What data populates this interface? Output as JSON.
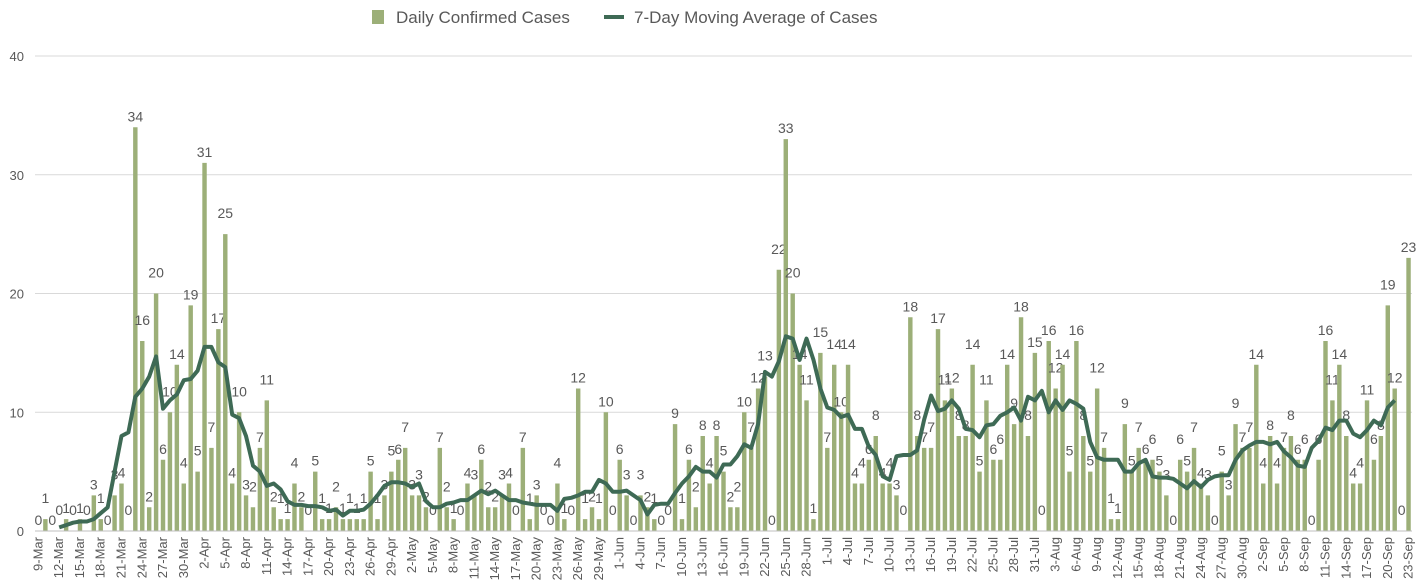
{
  "chart_data": {
    "type": "bar",
    "categories": [
      "9-Mar",
      null,
      null,
      "12-Mar",
      null,
      null,
      "15-Mar",
      null,
      null,
      "18-Mar",
      null,
      null,
      "21-Mar",
      null,
      null,
      "24-Mar",
      null,
      null,
      "27-Mar",
      null,
      null,
      "30-Mar",
      null,
      null,
      "2-Apr",
      null,
      null,
      "5-Apr",
      null,
      null,
      "8-Apr",
      null,
      null,
      "11-Apr",
      null,
      null,
      "14-Apr",
      null,
      null,
      "17-Apr",
      null,
      null,
      "20-Apr",
      null,
      null,
      "23-Apr",
      null,
      null,
      "26-Apr",
      null,
      null,
      "29-Apr",
      null,
      null,
      "2-May",
      null,
      null,
      "5-May",
      null,
      null,
      "8-May",
      null,
      null,
      "11-May",
      null,
      null,
      "14-May",
      null,
      null,
      "17-May",
      null,
      null,
      "20-May",
      null,
      null,
      "23-May",
      null,
      null,
      "26-May",
      null,
      null,
      "29-May",
      null,
      null,
      "1-Jun",
      null,
      null,
      "4-Jun",
      null,
      null,
      "7-Jun",
      null,
      null,
      "10-Jun",
      null,
      null,
      "13-Jun",
      null,
      null,
      "16-Jun",
      null,
      null,
      "19-Jun",
      null,
      null,
      "22-Jun",
      null,
      null,
      "25-Jun",
      null,
      null,
      "28-Jun",
      null,
      null,
      "1-Jul",
      null,
      null,
      "4-Jul",
      null,
      null,
      "7-Jul",
      null,
      null,
      "10-Jul",
      null,
      null,
      "13-Jul",
      null,
      null,
      "16-Jul",
      null,
      null,
      "19-Jul",
      null,
      null,
      "22-Jul",
      null,
      null,
      "25-Jul",
      null,
      null,
      "28-Jul",
      null,
      null,
      "31-Jul",
      null,
      null,
      "3-Aug",
      null,
      null,
      "6-Aug",
      null,
      null,
      "9-Aug",
      null,
      null,
      "12-Aug",
      null,
      null,
      "15-Aug",
      null,
      null,
      "18-Aug",
      null,
      null,
      "21-Aug",
      null,
      null,
      "24-Aug",
      null,
      null,
      "27-Aug",
      null,
      null,
      "30-Aug",
      null,
      null,
      "2-Sep",
      null,
      null,
      "5-Sep",
      null,
      null,
      "8-Sep",
      null,
      null,
      "11-Sep",
      null,
      null,
      "14-Sep",
      null,
      null,
      "17-Sep",
      null,
      null,
      "20-Sep",
      null,
      null,
      "23-Sep"
    ],
    "series": [
      {
        "name": "Daily Confirmed Cases",
        "type": "bar",
        "color": "#9caf78",
        "values": [
          0,
          1,
          0,
          0,
          1,
          0,
          1,
          0,
          3,
          1,
          0,
          3,
          4,
          0,
          34,
          16,
          2,
          20,
          6,
          10,
          14,
          4,
          19,
          5,
          31,
          7,
          17,
          25,
          4,
          10,
          3,
          2,
          7,
          11,
          2,
          1,
          1,
          4,
          2,
          0,
          5,
          1,
          1,
          2,
          1,
          1,
          1,
          1,
          5,
          1,
          3,
          5,
          6,
          7,
          3,
          3,
          2,
          0,
          7,
          2,
          1,
          0,
          4,
          3,
          6,
          2,
          2,
          3,
          4,
          0,
          7,
          1,
          3,
          0,
          0,
          4,
          1,
          0,
          12,
          1,
          2,
          1,
          10,
          0,
          6,
          3,
          0,
          3,
          2,
          1,
          0,
          0,
          9,
          1,
          6,
          2,
          8,
          4,
          8,
          5,
          2,
          2,
          10,
          7,
          12,
          13,
          0,
          22,
          33,
          20,
          14,
          11,
          1,
          15,
          7,
          14,
          10,
          14,
          4,
          4,
          6,
          8,
          4,
          4,
          3,
          0,
          18,
          8,
          7,
          7,
          17,
          11,
          12,
          8,
          8,
          14,
          5,
          11,
          6,
          6,
          14,
          9,
          18,
          8,
          15,
          0,
          16,
          12,
          14,
          5,
          16,
          8,
          5,
          12,
          7,
          1,
          1,
          9,
          5,
          7,
          6,
          6,
          5,
          3,
          0,
          6,
          5,
          7,
          4,
          3,
          0,
          5,
          3,
          9,
          7,
          7,
          14,
          4,
          8,
          4,
          7,
          8,
          6,
          6,
          0,
          6,
          16,
          11,
          14,
          8,
          4,
          4,
          11,
          6,
          8,
          19,
          12,
          0,
          23
        ]
      },
      {
        "name": "7-Day Moving Average of Cases",
        "type": "line",
        "color": "#3e6a55",
        "values": [
          null,
          null,
          null,
          0.3,
          0.5,
          0.7,
          0.8,
          0.8,
          1,
          1.5,
          2,
          5,
          8,
          8.3,
          11.3,
          12,
          13,
          14.7,
          10.3,
          11,
          11.5,
          12.7,
          12.8,
          13.5,
          15.5,
          15.5,
          14.2,
          13.8,
          9.8,
          9.5,
          8,
          5.5,
          5,
          3.8,
          4,
          3.5,
          2.5,
          2.2,
          2.2,
          2.1,
          2.1,
          2,
          1.7,
          1.8,
          1.3,
          1.7,
          1.7,
          1.8,
          2.3,
          3,
          3.8,
          4.1,
          4.1,
          4,
          3.7,
          4,
          2.5,
          2,
          2,
          2.3,
          2.4,
          2.6,
          2.6,
          3,
          3.4,
          3.1,
          3.4,
          3,
          2.6,
          2.6,
          2.4,
          2.3,
          2.2,
          2.2,
          2.2,
          1.7,
          2.7,
          2.8,
          3,
          3.3,
          3.3,
          4.3,
          4,
          3.3,
          3.3,
          3.4,
          3,
          2.6,
          1.4,
          2.2,
          2.3,
          2.3,
          3.2,
          4,
          4.6,
          5.4,
          5,
          5,
          4.5,
          5.6,
          5.6,
          6.3,
          7.3,
          7,
          9,
          13.4,
          13,
          14.3,
          16.4,
          16.2,
          14.4,
          16.2,
          14.4,
          12,
          10.4,
          10.2,
          9.6,
          9.8,
          8.6,
          8.6,
          7.1,
          6.4,
          4.6,
          4.3,
          6.3,
          6.4,
          6.4,
          6.8,
          9.4,
          11.4,
          10.1,
          10.3,
          11,
          10.3,
          8.6,
          8.5,
          7.9,
          8.9,
          9,
          9.7,
          10,
          10.4,
          9.3,
          11.3,
          11,
          11.8,
          10,
          11,
          10.2,
          11,
          10.7,
          10.3,
          7.5,
          6.2,
          6,
          6,
          6,
          5,
          5,
          5.7,
          6,
          4.6,
          4.5,
          4.5,
          4.4,
          4,
          3.6,
          4.2,
          3.7,
          4.3,
          4.6,
          4.7,
          4.7,
          6,
          6.8,
          7.2,
          7.5,
          7.5,
          7.3,
          7.5,
          6.7,
          6.2,
          5.5,
          5.4,
          7,
          7.6,
          8.7,
          8.5,
          9.3,
          9.3,
          8.2,
          7.9,
          8.5,
          9.3,
          8.9,
          10.4,
          11,
          null,
          null
        ]
      }
    ],
    "ylim": [
      0,
      40
    ],
    "yticks": [
      0,
      10,
      20,
      30,
      40
    ],
    "grid": true,
    "legend": "top"
  }
}
